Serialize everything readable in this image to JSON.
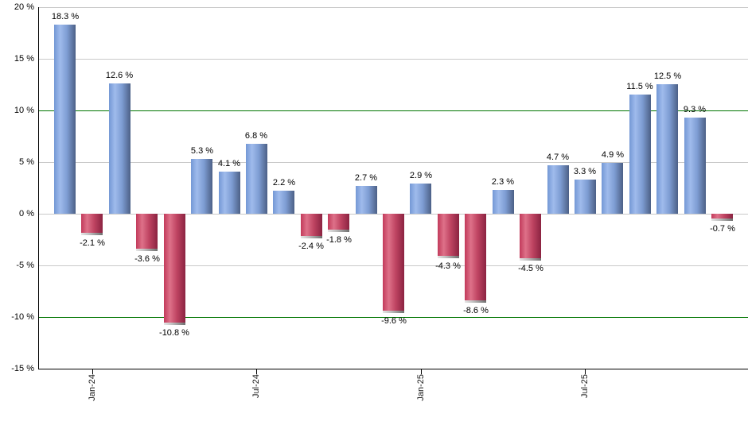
{
  "chart_data": {
    "type": "bar",
    "title": "",
    "xlabel": "",
    "ylabel": "",
    "ylim": [
      -15,
      20
    ],
    "grid": true,
    "legend": "none",
    "values": [
      18.3,
      -2.1,
      12.6,
      -3.6,
      -10.8,
      5.3,
      4.1,
      6.8,
      2.2,
      -2.4,
      -1.8,
      2.7,
      -9.6,
      2.9,
      -4.3,
      -8.6,
      2.3,
      -4.5,
      4.7,
      3.3,
      4.9,
      11.5,
      12.5,
      9.3,
      -0.7
    ],
    "bar_labels": [
      "18.3 %",
      "-2.1 %",
      "12.6 %",
      "-3.6 %",
      "-10.8 %",
      "5.3 %",
      "4.1 %",
      "6.8 %",
      "2.2 %",
      "-2.4 %",
      "-1.8 %",
      "2.7 %",
      "-9.6 %",
      "2.9 %",
      "-4.3 %",
      "-8.6 %",
      "2.3 %",
      "-4.5 %",
      "4.7 %",
      "3.3 %",
      "4.9 %",
      "11.5 %",
      "12.5 %",
      "9.3 %",
      "-0.7 %"
    ],
    "y_axis": {
      "tick_values": [
        20,
        15,
        10,
        5,
        0,
        -5,
        -10,
        -15
      ],
      "tick_labels": [
        "20 %",
        "15 %",
        "10 %",
        "5 %",
        "0 %",
        "-5 %",
        "-10 %",
        "-15 %"
      ]
    },
    "x_axis": {
      "ticks": [
        {
          "label": "Jan-24",
          "bar_index": 1
        },
        {
          "label": "Jul-24",
          "bar_index": 7
        },
        {
          "label": "Jan-25",
          "bar_index": 13
        },
        {
          "label": "Jul-25",
          "bar_index": 19
        }
      ]
    },
    "threshold_lines": [
      10,
      -10
    ],
    "colors": {
      "positive_base": "#7d9fd8",
      "positive_gradient": [
        "#7498d5",
        "#9fbbec",
        "#7e9dd3",
        "#4c6086"
      ],
      "negative_base": "#c84a66",
      "negative_gradient": [
        "#c23a5b",
        "#de7189",
        "#bf4462",
        "#8b2341"
      ],
      "threshold_line": "#007500",
      "gridline": "#c9c9c9",
      "axis": "#000000",
      "label_text": "#000000",
      "background": "#ffffff"
    }
  }
}
